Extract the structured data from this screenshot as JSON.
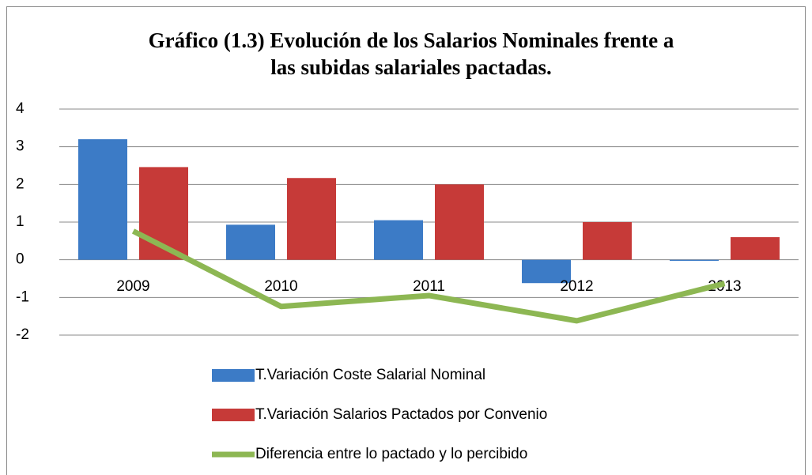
{
  "chart_data": {
    "type": "bar",
    "title": "Gráfico (1.3) Evolución de los Salarios Nominales frente a las subidas salariales pactadas.",
    "categories": [
      "2009",
      "2010",
      "2011",
      "2012",
      "2013"
    ],
    "series": [
      {
        "name": "T.Variación Coste Salarial Nominal",
        "type": "bar",
        "color": "#3c7bc6",
        "values": [
          3.2,
          0.93,
          1.05,
          -0.62,
          -0.03
        ]
      },
      {
        "name": "T.Variación Salarios Pactados por Convenio",
        "type": "bar",
        "color": "#c63a38",
        "values": [
          2.46,
          2.17,
          2.0,
          1.0,
          0.6
        ]
      },
      {
        "name": "Diferencia entre lo pactado y lo percibido",
        "type": "line",
        "color": "#8db753",
        "values": [
          0.76,
          -1.24,
          -0.95,
          -1.62,
          -0.63
        ]
      }
    ],
    "ylim": [
      -2,
      4
    ],
    "yticks": [
      -2,
      -1,
      0,
      1,
      2,
      3,
      4
    ],
    "grid": true
  }
}
